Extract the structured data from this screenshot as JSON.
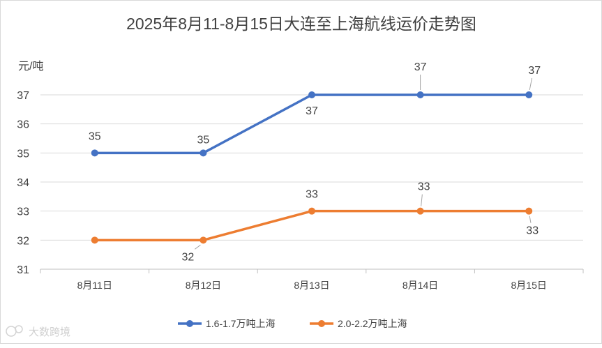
{
  "chart_data": {
    "type": "line",
    "title": "2025年8月11-8月15日大连至上海航线运价走势图",
    "ylabel": "元/吨",
    "xlabel": "",
    "ylim": [
      31,
      37
    ],
    "yticks": [
      31,
      32,
      33,
      34,
      35,
      36,
      37
    ],
    "categories": [
      "8月11日",
      "8月12日",
      "8月13日",
      "8月14日",
      "8月15日"
    ],
    "grid": true,
    "legend_position": "bottom",
    "series": [
      {
        "name": "1.6-1.7万吨上海",
        "color": "#4472C4",
        "values": [
          35,
          35,
          37,
          37,
          37
        ]
      },
      {
        "name": "2.0-2.2万吨上海",
        "color": "#ED7D31",
        "values": [
          32,
          32,
          33,
          33,
          33
        ]
      }
    ]
  },
  "watermark": {
    "text": "大数跨境"
  }
}
